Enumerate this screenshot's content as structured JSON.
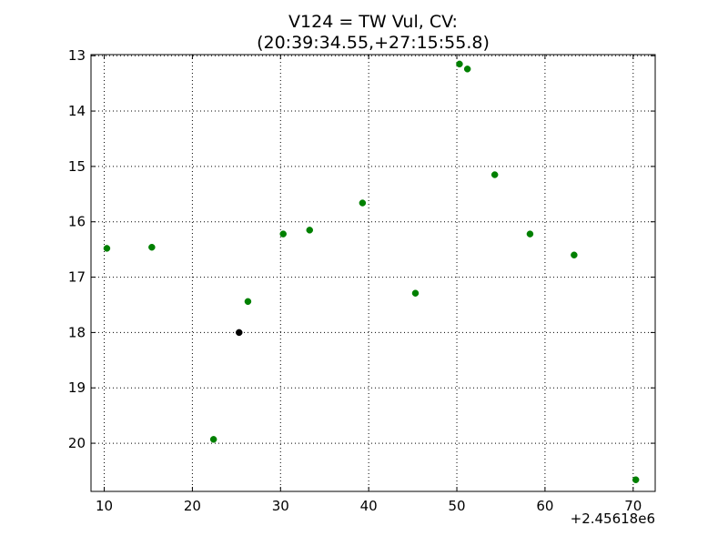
{
  "chart_data": {
    "type": "scatter",
    "title": "V124 = TW Vul, CV:",
    "subtitle": "(20:39:34.55,+27:15:55.8)",
    "xlabel": "",
    "ylabel": "",
    "x_offset_label": "+2.45618e6",
    "xlim": [
      8.5,
      72.5
    ],
    "ylim": [
      12.98,
      20.87
    ],
    "y_inverted": true,
    "grid": true,
    "legend": "none",
    "x_ticks": [
      10,
      20,
      30,
      40,
      50,
      60,
      70
    ],
    "y_ticks": [
      13,
      14,
      15,
      16,
      17,
      18,
      19,
      20
    ],
    "series": [
      {
        "color": "#008000",
        "points": [
          {
            "x": 10.3,
            "y": 16.48
          },
          {
            "x": 15.4,
            "y": 16.46
          },
          {
            "x": 22.4,
            "y": 19.93
          },
          {
            "x": 26.3,
            "y": 17.44
          },
          {
            "x": 30.3,
            "y": 16.22
          },
          {
            "x": 33.3,
            "y": 16.15
          },
          {
            "x": 39.3,
            "y": 15.66
          },
          {
            "x": 45.3,
            "y": 17.29
          },
          {
            "x": 50.3,
            "y": 13.15
          },
          {
            "x": 51.2,
            "y": 13.24
          },
          {
            "x": 54.3,
            "y": 15.15
          },
          {
            "x": 58.3,
            "y": 16.22
          },
          {
            "x": 63.3,
            "y": 16.6
          },
          {
            "x": 70.3,
            "y": 20.66
          }
        ]
      },
      {
        "color": "#000000",
        "points": [
          {
            "x": 25.3,
            "y": 18.0
          }
        ]
      }
    ]
  }
}
